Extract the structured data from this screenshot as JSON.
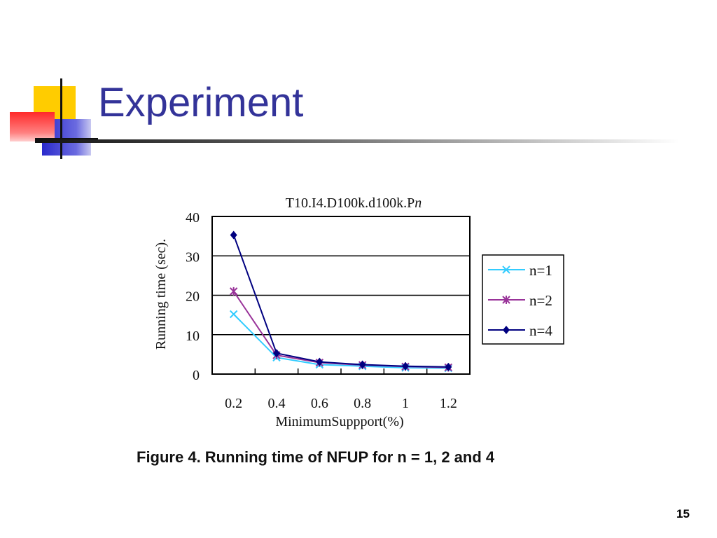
{
  "slide": {
    "title": "Experiment",
    "caption": "Figure 4. Running time of NFUP for n = 1, 2 and 4",
    "page_number": "15"
  },
  "colors": {
    "title": "#333399",
    "series_n1": "#33ccff",
    "series_n2": "#993399",
    "series_n4": "#000080",
    "deco_yellow": "#ffcc00",
    "deco_blue": "#3333cc",
    "deco_red": "#ff3333"
  },
  "chart_data": {
    "type": "line",
    "title": "T10.I4.D100k.d100k.Pn",
    "title_prefix": "T10.I4.D100k.d100k.P",
    "title_italic": "n",
    "xlabel": "MinimumSuppport(%)",
    "ylabel": "Running time (sec).",
    "x": [
      0.2,
      0.4,
      0.6,
      0.8,
      1,
      1.2
    ],
    "x_tick_labels": [
      "0.2",
      "0.4",
      "0.6",
      "0.8",
      "1",
      "1.2"
    ],
    "ylim": [
      0,
      40
    ],
    "y_ticks": [
      0,
      10,
      20,
      30,
      40
    ],
    "y_tick_labels": [
      "0",
      "10",
      "20",
      "30",
      "40"
    ],
    "grid": "horizontal",
    "legend_position": "right",
    "series": [
      {
        "name": "n=1",
        "values": [
          15.2,
          4.2,
          2.4,
          2.0,
          1.6,
          1.5
        ],
        "marker": "x",
        "color": "#33ccff"
      },
      {
        "name": "n=2",
        "values": [
          21.0,
          4.8,
          2.9,
          2.3,
          1.9,
          1.7
        ],
        "marker": "asterisk",
        "color": "#993399"
      },
      {
        "name": "n=4",
        "values": [
          35.3,
          5.3,
          3.1,
          2.4,
          2.0,
          1.8
        ],
        "marker": "diamond",
        "color": "#000080"
      }
    ]
  }
}
